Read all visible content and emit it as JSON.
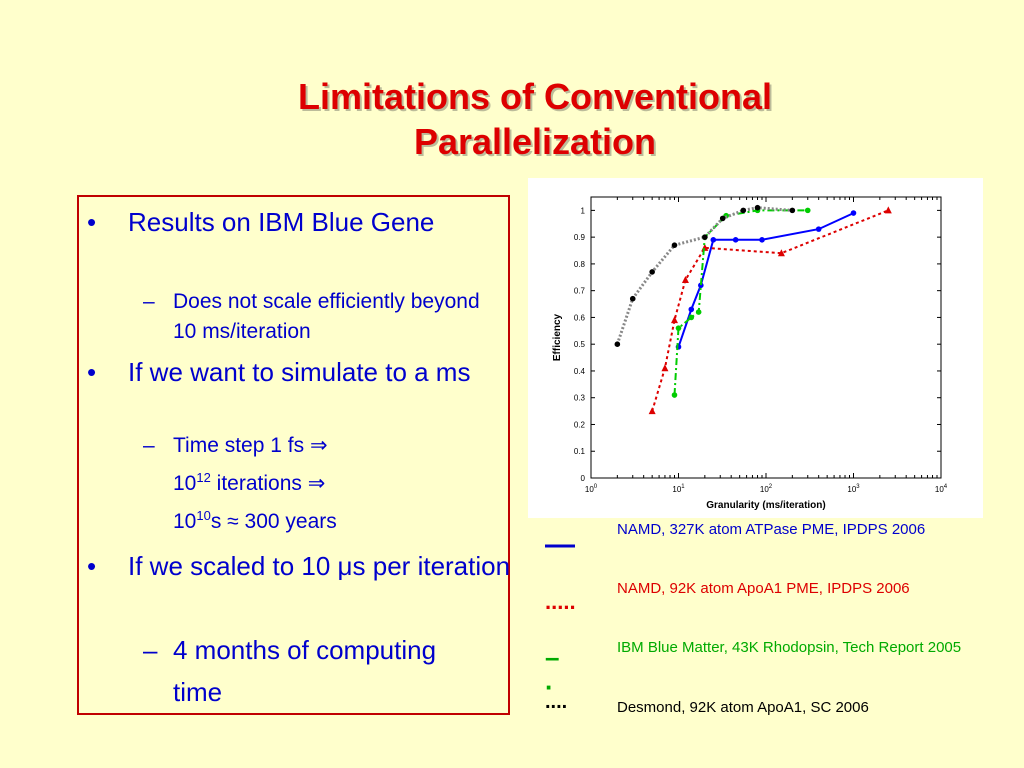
{
  "slide": {
    "title_line1": "Limitations of Conventional",
    "title_line2": "Parallelization",
    "bullets": {
      "b1": "Results on IBM Blue Gene",
      "b1_sub1": "Does not scale efficiently beyond 10 ms/iteration",
      "b2": "If we want to simulate to a ms",
      "b2_sub1": "Time step 1 fs",
      "b2_line2_a": "10",
      "b2_line2_sup": "12",
      "b2_line2_b": " iterations",
      "b2_line3_a": "10",
      "b2_line3_sup": "10",
      "b2_line3_b": "s ≈ 300 years",
      "b3": "If we scaled to 10 μs per iteration",
      "b3_sub1": "4 months of computing time"
    },
    "symbols": {
      "bullet": "•",
      "dash": "–",
      "implies": "⇒"
    }
  },
  "legend": [
    {
      "mark": "—",
      "label": "NAMD, 327K atom ATPase PME, IPDPS 2006",
      "color": "#0000cc"
    },
    {
      "mark": ".....",
      "label": "NAMD, 92K atom ApoA1 PME, IPDPS 2006",
      "color": "#dd0000"
    },
    {
      "mark": "– ·",
      "label": "IBM Blue Matter, 43K Rhodopsin, Tech Report 2005",
      "color": "#00aa00"
    },
    {
      "mark": "....",
      "label": "Desmond, 92K atom ApoA1, SC 2006",
      "color": "#000000"
    }
  ],
  "chart_data": {
    "type": "line",
    "xlabel": "Granularity (ms/iteration)",
    "ylabel": "Efficiency",
    "xscale": "log",
    "xlim": [
      1,
      10000
    ],
    "ylim": [
      0,
      1.05
    ],
    "xticks": [
      {
        "value": 1,
        "base": "10",
        "exp": "0"
      },
      {
        "value": 10,
        "base": "10",
        "exp": "1"
      },
      {
        "value": 100,
        "base": "10",
        "exp": "2"
      },
      {
        "value": 1000,
        "base": "10",
        "exp": "3"
      },
      {
        "value": 10000,
        "base": "10",
        "exp": "4"
      }
    ],
    "yticks": [
      "0",
      "0.1",
      "0.2",
      "0.3",
      "0.4",
      "0.5",
      "0.6",
      "0.7",
      "0.8",
      "0.9",
      "1"
    ],
    "series": [
      {
        "color": "#0000ff",
        "style": "solid",
        "marker": "circle",
        "points": [
          [
            10,
            0.49
          ],
          [
            14,
            0.63
          ],
          [
            18,
            0.72
          ],
          [
            25,
            0.89
          ],
          [
            45,
            0.89
          ],
          [
            90,
            0.89
          ],
          [
            400,
            0.93
          ],
          [
            1000,
            0.99
          ]
        ]
      },
      {
        "color": "#dd0000",
        "style": "dotted",
        "marker": "triangle",
        "points": [
          [
            5,
            0.25
          ],
          [
            7,
            0.41
          ],
          [
            9,
            0.59
          ],
          [
            12,
            0.74
          ],
          [
            20,
            0.86
          ],
          [
            150,
            0.84
          ],
          [
            2500,
            1.0
          ]
        ]
      },
      {
        "color": "#00cc00",
        "style": "dashdot",
        "marker": "circle",
        "points": [
          [
            9,
            0.31
          ],
          [
            10,
            0.56
          ],
          [
            14,
            0.6
          ],
          [
            17,
            0.62
          ],
          [
            20,
            0.9
          ],
          [
            35,
            0.98
          ],
          [
            80,
            1.0
          ],
          [
            300,
            1.0
          ]
        ]
      },
      {
        "color": "#000000",
        "style": "dotted-gray",
        "marker": "circle",
        "points": [
          [
            2,
            0.5
          ],
          [
            3,
            0.67
          ],
          [
            5,
            0.77
          ],
          [
            9,
            0.87
          ],
          [
            20,
            0.9
          ],
          [
            32,
            0.97
          ],
          [
            55,
            1.0
          ],
          [
            80,
            1.01
          ],
          [
            200,
            1.0
          ]
        ]
      }
    ]
  }
}
